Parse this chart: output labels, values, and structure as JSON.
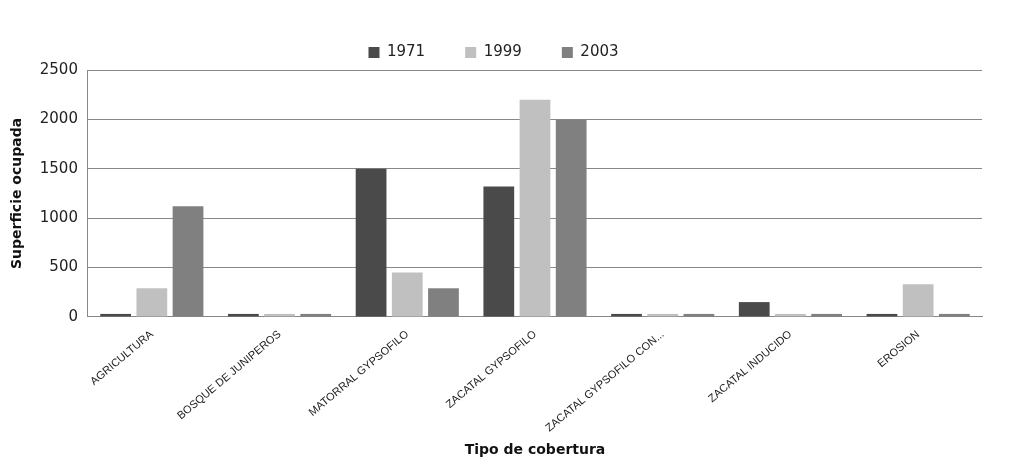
{
  "chart_data": {
    "type": "bar",
    "xlabel": "Tipo de cobertura",
    "ylabel": "Superficie ocupada",
    "categories": [
      "AGRICULTURA",
      "BOSQUE DE JUNIPEROS",
      "MATORRAL GYPSOFILO",
      "ZACATAL GYPSOFILO",
      "ZACATAL GYPSOFILO CON...",
      "ZACATAL INDUCIDO",
      "EROSION"
    ],
    "series": [
      {
        "name": "1971",
        "color": "#4a4a4a",
        "values": [
          0,
          0,
          1500,
          1320,
          0,
          150,
          0
        ]
      },
      {
        "name": "1999",
        "color": "#c0c0c0",
        "values": [
          290,
          0,
          450,
          2200,
          0,
          0,
          330
        ]
      },
      {
        "name": "2003",
        "color": "#808080",
        "values": [
          1120,
          0,
          290,
          2000,
          0,
          0,
          0
        ]
      }
    ],
    "ylim": [
      0,
      2500
    ],
    "yticks": [
      0,
      500,
      1000,
      1500,
      2000,
      2500
    ],
    "grid": "y",
    "legend": "top"
  }
}
